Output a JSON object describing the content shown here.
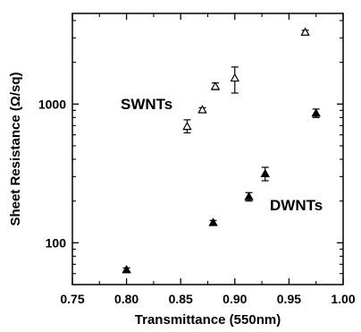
{
  "chart_data": {
    "type": "scatter",
    "xlabel": "Transmittance (550nm)",
    "ylabel": "Sheet Resistance (Ω/sq)",
    "xlim": [
      0.75,
      1.0
    ],
    "ylim": [
      50,
      4500
    ],
    "y_scale": "log",
    "x_ticks": [
      "0.75",
      "0.80",
      "0.85",
      "0.90",
      "0.95",
      "1.00"
    ],
    "x_tick_values": [
      0.75,
      0.8,
      0.85,
      0.9,
      0.95,
      1.0
    ],
    "y_ticks": [
      "100",
      "1000"
    ],
    "y_tick_values": [
      100,
      1000
    ],
    "grid": false,
    "series": [
      {
        "name": "SWNTs",
        "marker": "open-triangle",
        "x": [
          0.856,
          0.87,
          0.882,
          0.9,
          0.965
        ],
        "y": [
          690,
          910,
          1340,
          1540,
          3300
        ],
        "err_low": [
          620,
          880,
          1270,
          1200,
          3200
        ],
        "err_high": [
          770,
          940,
          1420,
          1850,
          3400
        ]
      },
      {
        "name": "DWNTs",
        "marker": "filled-triangle",
        "x": [
          0.8,
          0.88,
          0.913,
          0.928,
          0.975
        ],
        "y": [
          64,
          140,
          215,
          315,
          860
        ],
        "err_low": [
          62,
          135,
          200,
          280,
          800
        ],
        "err_high": [
          66,
          145,
          230,
          350,
          920
        ]
      }
    ]
  }
}
